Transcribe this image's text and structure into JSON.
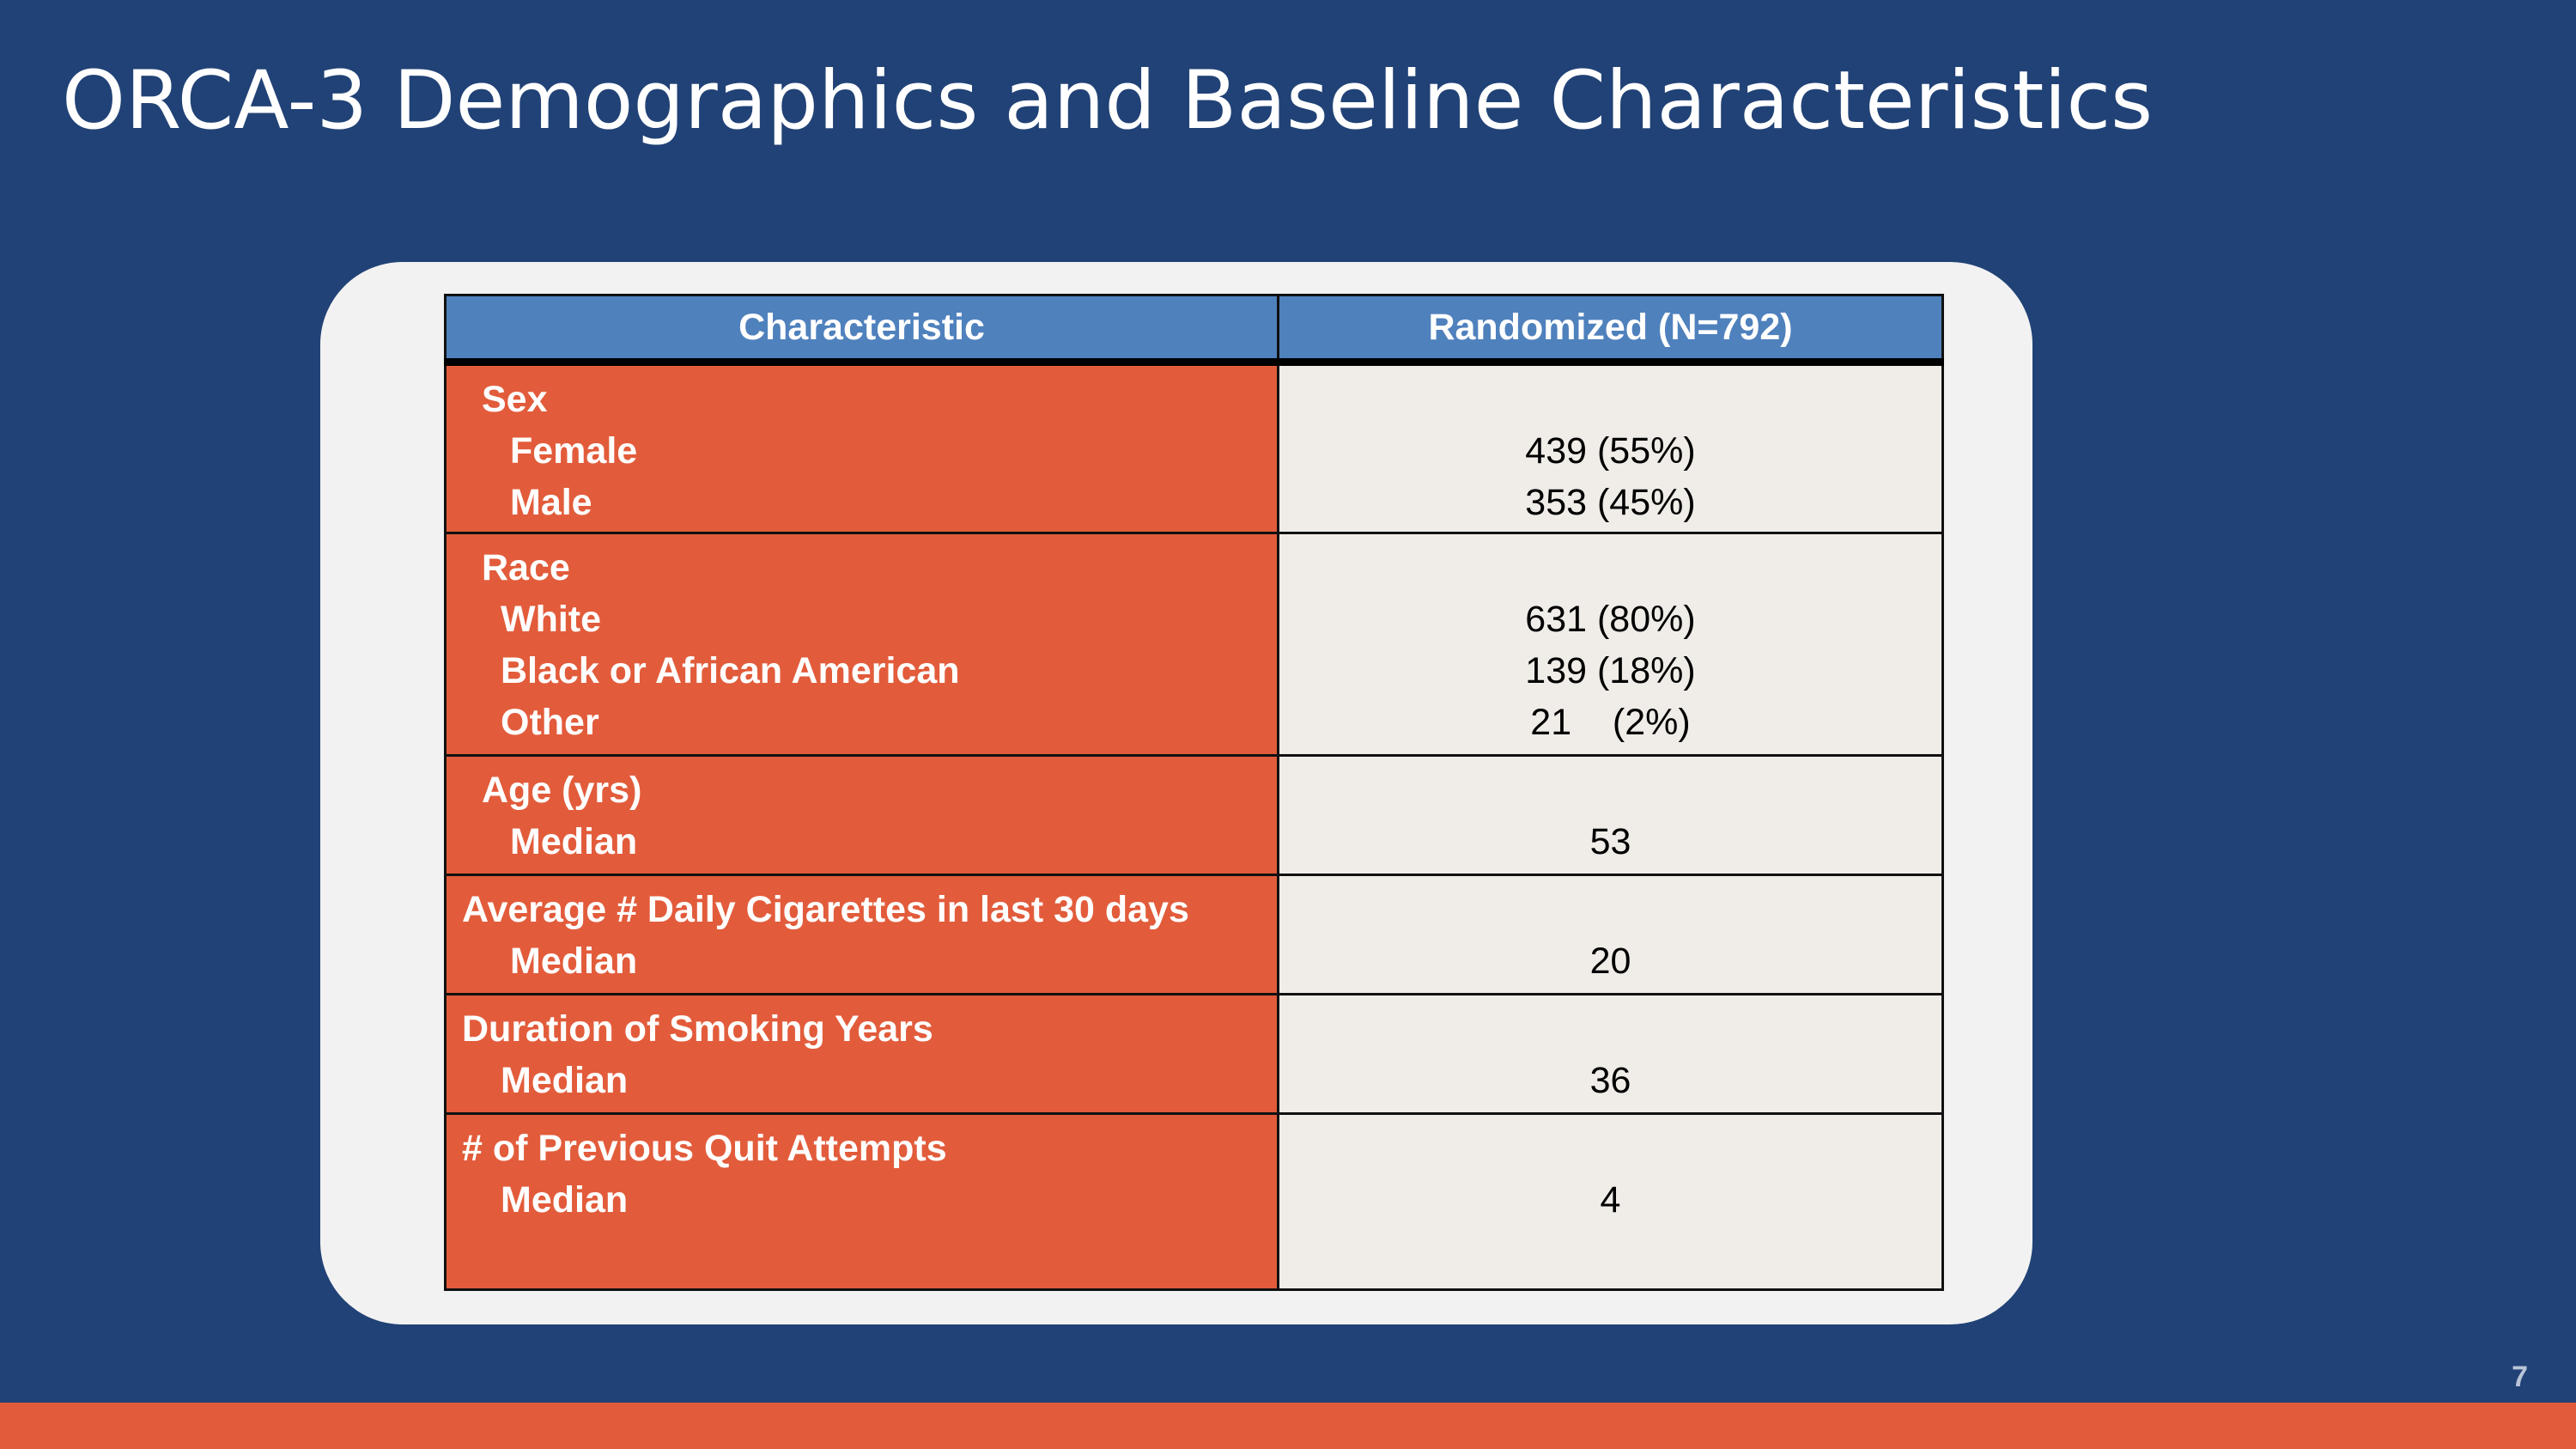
{
  "slide": {
    "title": "ORCA-3 Demographics and Baseline Characteristics",
    "page_number": "7"
  },
  "table": {
    "headers": [
      "Characteristic",
      "Randomized (N=792)"
    ],
    "groups": [
      {
        "label": "Sex",
        "items": [
          {
            "label": "Female",
            "value": "439 (55%)"
          },
          {
            "label": "Male",
            "value": "353 (45%)"
          }
        ]
      },
      {
        "label": "Race",
        "items": [
          {
            "label": "White",
            "value": "631 (80%)"
          },
          {
            "label": "Black or African American",
            "value": "139 (18%)"
          },
          {
            "label": "Other",
            "value": "21    (2%)"
          }
        ]
      },
      {
        "label": "Age (yrs)",
        "items": [
          {
            "label": "Median",
            "value": "53"
          }
        ]
      },
      {
        "label": "Average # Daily Cigarettes in last 30 days",
        "items": [
          {
            "label": "Median",
            "value": "20"
          }
        ]
      },
      {
        "label": "Duration of Smoking Years",
        "items": [
          {
            "label": "Median",
            "value": "36"
          }
        ]
      },
      {
        "label": "# of Previous Quit Attempts",
        "items": [
          {
            "label": "Median",
            "value": "4"
          }
        ]
      }
    ]
  },
  "colors": {
    "background": "#214276",
    "header_fill": "#4f81bd",
    "characteristic_fill": "#e25c3b",
    "value_fill": "#f0ece8",
    "footer_bar": "#e25c3b"
  }
}
